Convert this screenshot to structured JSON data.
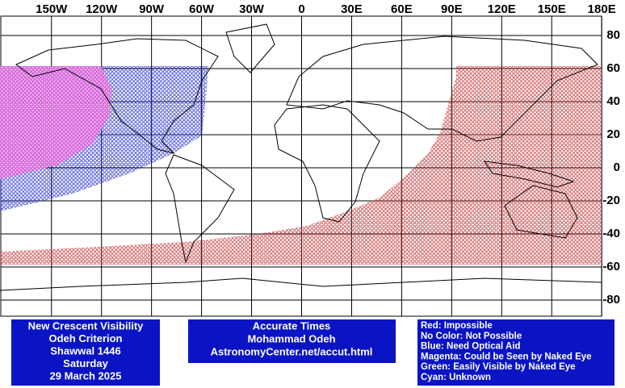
{
  "map": {
    "xticks": [
      {
        "value": -150,
        "label": "150W"
      },
      {
        "value": -120,
        "label": "120W"
      },
      {
        "value": -90,
        "label": "90W"
      },
      {
        "value": -60,
        "label": "60W"
      },
      {
        "value": -30,
        "label": "30W"
      },
      0,
      {
        "value": 30,
        "label": "30E"
      },
      {
        "value": 60,
        "label": "60E"
      },
      {
        "value": 90,
        "label": "90E"
      },
      {
        "value": 120,
        "label": "120E"
      },
      {
        "value": 150,
        "label": "150E"
      },
      {
        "value": 180,
        "label": "180E"
      }
    ],
    "yticks": [
      80,
      60,
      40,
      20,
      0,
      -20,
      -40,
      -60,
      -80
    ],
    "info": [
      "New Crescent Visibility",
      "Odeh Criterion",
      "Shawwal 1446",
      "Saturday",
      "29 March 2025"
    ],
    "credit": [
      "Accurate Times",
      "Mohammad Odeh",
      "AstronomyCenter.net/accut.html"
    ],
    "legend": [
      "Red: Impossible",
      "No Color: Not Possible",
      "Blue: Need Optical Aid",
      "Magenta: Could be Seen by Naked Eye",
      "Green: Easily Visible by Naked Eye",
      "Cyan: Unknown"
    ]
  }
}
